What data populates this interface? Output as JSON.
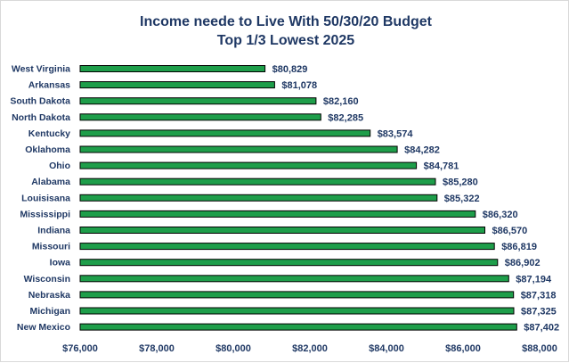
{
  "chart_data": {
    "type": "bar",
    "orientation": "horizontal",
    "title": "Income neede to Live With 50/30/20 Budget",
    "subtitle": "Top 1/3 Lowest 2025",
    "categories": [
      "West Virginia",
      "Arkansas",
      "South Dakota",
      "North Dakota",
      "Kentucky",
      "Oklahoma",
      "Ohio",
      "Alabama",
      "Louisisana",
      "Mississippi",
      "Indiana",
      "Missouri",
      "Iowa",
      "Wisconsin",
      "Nebraska",
      "Michigan",
      "New Mexico"
    ],
    "values": [
      80829,
      81078,
      82160,
      82285,
      83574,
      84282,
      84781,
      85280,
      85322,
      86320,
      86570,
      86819,
      86902,
      87194,
      87318,
      87325,
      87402
    ],
    "value_labels": [
      "$80,829",
      "$81,078",
      "$82,160",
      "$82,285",
      "$83,574",
      "$84,282",
      "$84,781",
      "$85,280",
      "$85,322",
      "$86,320",
      "$86,570",
      "$86,819",
      "$86,902",
      "$87,194",
      "$87,318",
      "$87,325",
      "$87,402"
    ],
    "xlim": [
      76000,
      88000
    ],
    "xticks": [
      76000,
      78000,
      80000,
      82000,
      84000,
      86000,
      88000
    ],
    "xtick_labels": [
      "$76,000",
      "$78,000",
      "$80,000",
      "$82,000",
      "$84,000",
      "$86,000",
      "$88,000"
    ],
    "bar_color": "#1e9e4a",
    "bar_outline": "#000000",
    "text_color": "#1f3864",
    "grid": false,
    "legend": "none"
  }
}
